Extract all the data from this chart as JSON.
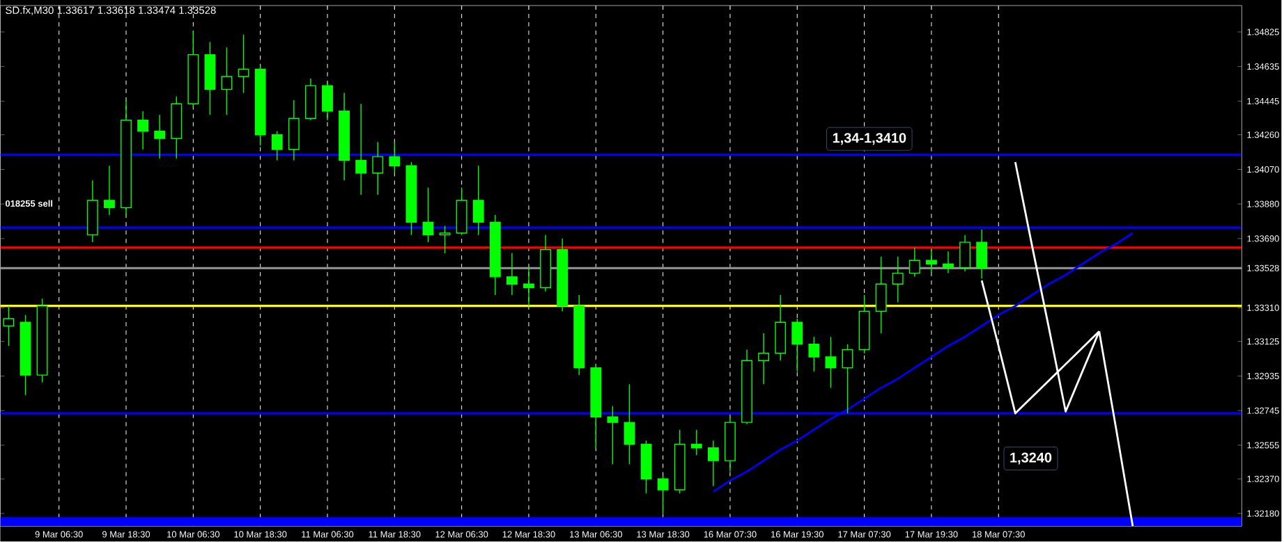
{
  "chart_data": {
    "type": "candlestick",
    "title": "SD.fx,M30  1.33617 1.33618 1.33474 1.33528",
    "categories": [
      null,
      null,
      null,
      "9 Mar 06:30",
      null,
      null,
      null,
      "9 Mar 18:30",
      null,
      null,
      null,
      "10 Mar 06:30",
      null,
      null,
      null,
      "10 Mar 18:30",
      null,
      null,
      null,
      "11 Mar 06:30",
      null,
      null,
      null,
      "11 Mar 18:30",
      null,
      null,
      null,
      "12 Mar 06:30",
      null,
      null,
      null,
      "12 Mar 18:30",
      null,
      null,
      null,
      "13 Mar 06:30",
      null,
      null,
      null,
      "13 Mar 18:30",
      null,
      null,
      null,
      "16 Mar 07:30",
      null,
      null,
      null,
      "16 Mar 19:30",
      null,
      null,
      null,
      "17 Mar 07:30",
      null,
      null,
      null,
      "17 Mar 19:30",
      null,
      null,
      null,
      "18 Mar 07:30",
      null,
      null,
      null,
      null,
      null,
      null,
      null,
      null,
      null,
      null,
      null,
      null,
      null,
      null
    ],
    "ylim": [
      1.3211,
      1.3497
    ],
    "yticks": [
      1.34825,
      1.34635,
      1.34445,
      {
        "value": 1.3426,
        "label": "1.34260"
      },
      {
        "value": 1.3407,
        "label": "1.34070"
      },
      {
        "value": 1.3388,
        "label": "1.33880"
      },
      {
        "value": 1.3369,
        "label": "1.33690"
      },
      1.33528,
      {
        "value": 1.3331,
        "label": "1.33310"
      },
      1.33125,
      1.32935,
      1.32745,
      1.32555,
      {
        "value": 1.3237,
        "label": "1.32370"
      },
      {
        "value": 1.3218,
        "label": "1.32180"
      }
    ],
    "grid": "x",
    "series": [
      {
        "color": "#00ff00",
        "ohlc": [
          [
            1.3321,
            1.3332,
            1.331,
            1.3325
          ],
          [
            1.3323,
            1.3327,
            1.3283,
            1.3294
          ],
          [
            1.3294,
            1.3336,
            1.329,
            1.3332
          ],
          null,
          null,
          [
            1.3371,
            1.3401,
            1.3367,
            1.339
          ],
          [
            1.339,
            1.3409,
            1.3382,
            1.3386
          ],
          [
            1.3386,
            1.3445,
            1.3382,
            1.3434
          ],
          [
            1.3434,
            1.3439,
            1.3418,
            1.3428
          ],
          [
            1.3428,
            1.3437,
            1.3413,
            1.3424
          ],
          [
            1.3424,
            1.3447,
            1.3413,
            1.3443
          ],
          [
            1.3443,
            1.3483,
            1.3441,
            1.347
          ],
          [
            1.347,
            1.3477,
            1.3437,
            1.3451
          ],
          [
            1.3451,
            1.3474,
            1.3437,
            1.3458
          ],
          [
            1.3458,
            1.3481,
            1.3449,
            1.3462
          ],
          [
            1.3462,
            1.3464,
            1.342,
            1.3426
          ],
          [
            1.3426,
            1.3428,
            1.3412,
            1.3418
          ],
          [
            1.3418,
            1.3445,
            1.3412,
            1.3435
          ],
          [
            1.3435,
            1.3457,
            1.3434,
            1.3453
          ],
          [
            1.3453,
            1.3455,
            1.3434,
            1.3439
          ],
          [
            1.3439,
            1.3449,
            1.3401,
            1.3412
          ],
          [
            1.3412,
            1.3443,
            1.3393,
            1.3405
          ],
          [
            1.3405,
            1.3422,
            1.3393,
            1.3414
          ],
          [
            1.3414,
            1.3422,
            1.3405,
            1.3409
          ],
          [
            1.3409,
            1.3411,
            1.3371,
            1.3378
          ],
          [
            1.3378,
            1.3397,
            1.3367,
            1.3371
          ],
          [
            1.3371,
            1.3376,
            1.3361,
            1.3372
          ],
          [
            1.3372,
            1.3397,
            1.3371,
            1.339
          ],
          [
            1.339,
            1.3409,
            1.3371,
            1.3378
          ],
          [
            1.3378,
            1.3382,
            1.3338,
            1.3348
          ],
          [
            1.3348,
            1.3361,
            1.3338,
            1.3344
          ],
          [
            1.3344,
            1.3353,
            1.3332,
            1.3342
          ],
          [
            1.3342,
            1.3371,
            1.334,
            1.3363
          ],
          [
            1.3363,
            1.3369,
            1.3329,
            1.3332
          ],
          [
            1.3332,
            1.3338,
            1.3294,
            1.3298
          ],
          [
            1.3298,
            1.33,
            1.3254,
            1.3271
          ],
          [
            1.3271,
            1.3277,
            1.3245,
            1.3268
          ],
          [
            1.3268,
            1.3289,
            1.3245,
            1.3256
          ],
          [
            1.3256,
            1.3258,
            1.3229,
            1.3237
          ],
          [
            1.3237,
            1.3239,
            1.3218,
            1.3231
          ],
          [
            1.3231,
            1.3264,
            1.3229,
            1.3256
          ],
          [
            1.3256,
            1.3264,
            1.325,
            1.3254
          ],
          [
            1.3254,
            1.3258,
            1.3233,
            1.3247
          ],
          [
            1.3247,
            1.3271,
            1.3241,
            1.3268
          ],
          [
            1.3268,
            1.3308,
            1.3267,
            1.3302
          ],
          [
            1.3302,
            1.3317,
            1.3289,
            1.3306
          ],
          [
            1.3306,
            1.3338,
            1.3302,
            1.3323
          ],
          [
            1.3323,
            1.3325,
            1.3296,
            1.3311
          ],
          [
            1.3311,
            1.3315,
            1.3296,
            1.3304
          ],
          [
            1.3304,
            1.3315,
            1.3287,
            1.3298
          ],
          [
            1.3298,
            1.3311,
            1.3273,
            1.3308
          ],
          [
            1.3308,
            1.3338,
            1.3306,
            1.3329
          ],
          [
            1.3329,
            1.3359,
            1.3317,
            1.3344
          ],
          [
            1.3344,
            1.3359,
            1.3334,
            1.335
          ],
          [
            1.335,
            1.3364,
            1.3348,
            1.3357
          ],
          [
            1.3357,
            1.3363,
            1.335,
            1.3355
          ],
          [
            1.3355,
            1.3362,
            1.335,
            1.3353
          ],
          [
            1.3353,
            1.3371,
            1.3351,
            1.3367
          ],
          [
            1.3367,
            1.3374,
            1.3347,
            1.33528
          ],
          null,
          null,
          null,
          null,
          null,
          null,
          null,
          null,
          null,
          null,
          null,
          null,
          null,
          null,
          null
        ]
      },
      {
        "type": "line",
        "color": "#0000ff",
        "values": [
          null,
          null,
          null,
          null,
          null,
          null,
          null,
          null,
          null,
          null,
          null,
          null,
          null,
          null,
          null,
          null,
          null,
          null,
          null,
          null,
          null,
          null,
          null,
          null,
          null,
          null,
          null,
          null,
          null,
          null,
          null,
          null,
          null,
          null,
          null,
          null,
          null,
          null,
          null,
          null,
          null,
          null,
          1.323,
          1.3236,
          1.3241,
          1.3247,
          1.3253,
          1.3258,
          1.3264,
          1.327,
          1.3275,
          1.3281,
          1.3287,
          1.3292,
          1.3298,
          1.3304,
          1.331,
          1.3315,
          1.3321,
          1.3327,
          1.3332,
          1.3338,
          1.3344,
          1.3349,
          1.3355,
          1.3361,
          1.3366,
          1.3372,
          null,
          null,
          null,
          null,
          null,
          null
        ]
      },
      {
        "type": "line",
        "color": "#ffffff",
        "values": [
          null,
          null,
          null,
          null,
          null,
          null,
          null,
          null,
          null,
          null,
          null,
          null,
          null,
          null,
          null,
          null,
          null,
          null,
          null,
          null,
          null,
          null,
          null,
          null,
          null,
          null,
          null,
          null,
          null,
          null,
          null,
          null,
          null,
          null,
          null,
          null,
          null,
          null,
          null,
          null,
          null,
          null,
          null,
          null,
          null,
          null,
          null,
          null,
          null,
          null,
          null,
          null,
          null,
          null,
          null,
          null,
          null,
          null,
          1.3346,
          1.331,
          1.3273,
          1.3282,
          1.3291,
          1.33,
          1.3309,
          1.3318,
          null,
          null,
          null,
          null,
          null,
          null,
          null,
          null
        ]
      },
      {
        "type": "line",
        "color": "#ffffff",
        "values": [
          null,
          null,
          null,
          null,
          null,
          null,
          null,
          null,
          null,
          null,
          null,
          null,
          null,
          null,
          null,
          null,
          null,
          null,
          null,
          null,
          null,
          null,
          null,
          null,
          null,
          null,
          null,
          null,
          null,
          null,
          null,
          null,
          null,
          null,
          null,
          null,
          null,
          null,
          null,
          null,
          null,
          null,
          null,
          null,
          null,
          null,
          null,
          null,
          null,
          null,
          null,
          null,
          null,
          null,
          null,
          null,
          null,
          null,
          null,
          null,
          1.3411,
          1.3365,
          1.332,
          1.3274,
          1.3296,
          1.3318,
          null,
          null,
          null,
          null,
          null,
          null,
          null,
          null
        ]
      },
      {
        "type": "line",
        "color": "#ffffff",
        "values": [
          null,
          null,
          null,
          null,
          null,
          null,
          null,
          null,
          null,
          null,
          null,
          null,
          null,
          null,
          null,
          null,
          null,
          null,
          null,
          null,
          null,
          null,
          null,
          null,
          null,
          null,
          null,
          null,
          null,
          null,
          null,
          null,
          null,
          null,
          null,
          null,
          null,
          null,
          null,
          null,
          null,
          null,
          null,
          null,
          null,
          null,
          null,
          null,
          null,
          null,
          null,
          null,
          null,
          null,
          null,
          null,
          null,
          null,
          null,
          null,
          null,
          null,
          null,
          null,
          null,
          1.3318,
          1.3265,
          1.3211,
          null,
          null,
          null,
          null,
          null,
          null
        ]
      }
    ],
    "ref_lines": [
      {
        "axis": "y",
        "value": 1.3415,
        "label": "1,34-1,3410",
        "color": "#0000ff"
      },
      {
        "axis": "y",
        "value": 1.3375,
        "color": "#0000ff"
      },
      {
        "axis": "y",
        "value": 1.3364,
        "color": "#ff0000"
      },
      {
        "axis": "y",
        "value": 1.33528,
        "color": "#8c8c8c"
      },
      {
        "axis": "y",
        "value": 1.3332,
        "color": "#ffff00"
      },
      {
        "axis": "y",
        "value": 1.3273,
        "color": "#0000ff"
      }
    ],
    "bands": [
      {
        "axis": "y",
        "from": 1.3211,
        "to": 1.3216,
        "color": "#0000ff"
      }
    ],
    "annotations": [
      "1,3240",
      "018255 sell"
    ]
  }
}
